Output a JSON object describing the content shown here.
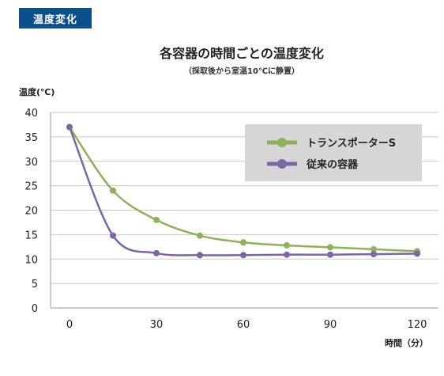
{
  "badge": {
    "label": "温度変化"
  },
  "chart_data": {
    "type": "line",
    "title": "各容器の時間ごとの温度変化",
    "subtitle": "（採取後から室温10℃に静置）",
    "ylabel": "温度(℃)",
    "xlabel": "時間（分）",
    "xlim": [
      0,
      120
    ],
    "ylim": [
      0,
      40
    ],
    "xticks": [
      0,
      30,
      60,
      90,
      120
    ],
    "yticks": [
      0,
      5,
      10,
      15,
      20,
      25,
      30,
      35,
      40
    ],
    "grid": true,
    "legend_position": "top-right",
    "series": [
      {
        "name": "トランスポーターS",
        "color": "#8db35a",
        "x": [
          0,
          15,
          30,
          45,
          60,
          75,
          90,
          105,
          120
        ],
        "y": [
          37,
          24,
          18,
          14.8,
          13.4,
          12.8,
          12.4,
          12.0,
          11.6
        ]
      },
      {
        "name": "従来の容器",
        "color": "#7b66a8",
        "x": [
          0,
          15,
          30,
          45,
          60,
          75,
          90,
          105,
          120
        ],
        "y": [
          37,
          14.8,
          11.2,
          10.8,
          10.8,
          10.9,
          10.9,
          11.0,
          11.1
        ]
      }
    ]
  }
}
